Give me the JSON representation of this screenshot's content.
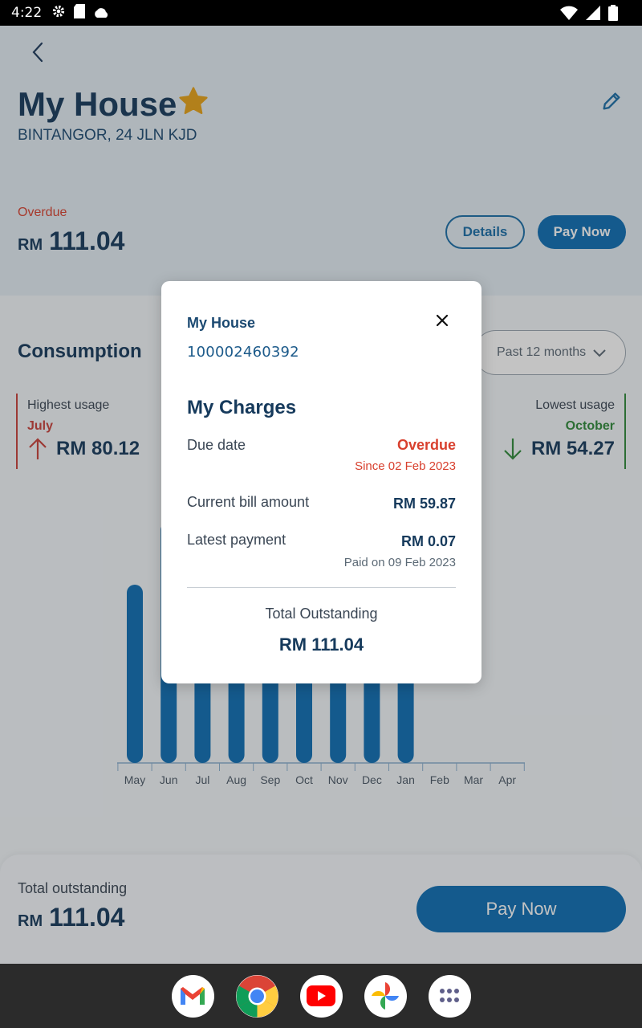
{
  "status_bar": {
    "time": "4:22"
  },
  "header": {
    "title": "My House",
    "address": "BINTANGOR, 24 JLN KJD",
    "status": "Overdue",
    "currency": "RM",
    "amount": "111.04",
    "details_label": "Details",
    "pay_now_label": "Pay Now"
  },
  "consumption": {
    "title": "Consumption",
    "period": "Past 12 months",
    "highest": {
      "label": "Highest usage",
      "month": "July",
      "amount": "RM 80.12"
    },
    "lowest": {
      "label": "Lowest usage",
      "month": "October",
      "amount": "RM 54.27"
    }
  },
  "chart_data": {
    "type": "bar",
    "categories": [
      "May",
      "Jun",
      "Jul",
      "Aug",
      "Sep",
      "Oct",
      "Nov",
      "Dec",
      "Jan",
      "Feb",
      "Mar",
      "Apr"
    ],
    "values": [
      {
        "month": "May",
        "visible_height": 0.74
      },
      {
        "month": "Jun",
        "visible_height": 1.0
      },
      {
        "month": "Jul",
        "visible_height": 1.0
      },
      {
        "month": "Aug",
        "visible_height": 1.0
      },
      {
        "month": "Sep",
        "visible_height": 1.0
      },
      {
        "month": "Oct",
        "visible_height": 1.0
      },
      {
        "month": "Nov",
        "visible_height": 1.0
      },
      {
        "month": "Dec",
        "visible_height": 1.0
      },
      {
        "month": "Jan",
        "visible_height": 1.0
      },
      {
        "month": "Feb",
        "visible_height": 0
      },
      {
        "month": "Mar",
        "visible_height": 0
      },
      {
        "month": "Apr",
        "visible_height": 0
      }
    ],
    "bar_color": "#0d6eb4"
  },
  "bottom_bar": {
    "label": "Total outstanding",
    "currency": "RM",
    "amount": "111.04",
    "pay_now_label": "Pay Now"
  },
  "modal": {
    "name": "My House",
    "account": "100002460392",
    "charges_title": "My Charges",
    "due_date_label": "Due date",
    "due_status": "Overdue",
    "due_since": "Since 02 Feb 2023",
    "current_bill_label": "Current bill amount",
    "current_bill_value": "RM 59.87",
    "latest_payment_label": "Latest payment",
    "latest_payment_value": "RM 0.07",
    "paid_on": "Paid on 09 Feb 2023",
    "total_label": "Total Outstanding",
    "total_value": "RM 111.04"
  },
  "dock": {
    "apps": [
      "gmail-icon",
      "chrome-icon",
      "youtube-icon",
      "photos-icon",
      "apps-icon"
    ]
  },
  "colors": {
    "primary": "#0d6eb4",
    "overdue": "#d8402e",
    "high": "#c9413a",
    "low": "#2e8a3a",
    "accent_star": "#e8a317"
  }
}
